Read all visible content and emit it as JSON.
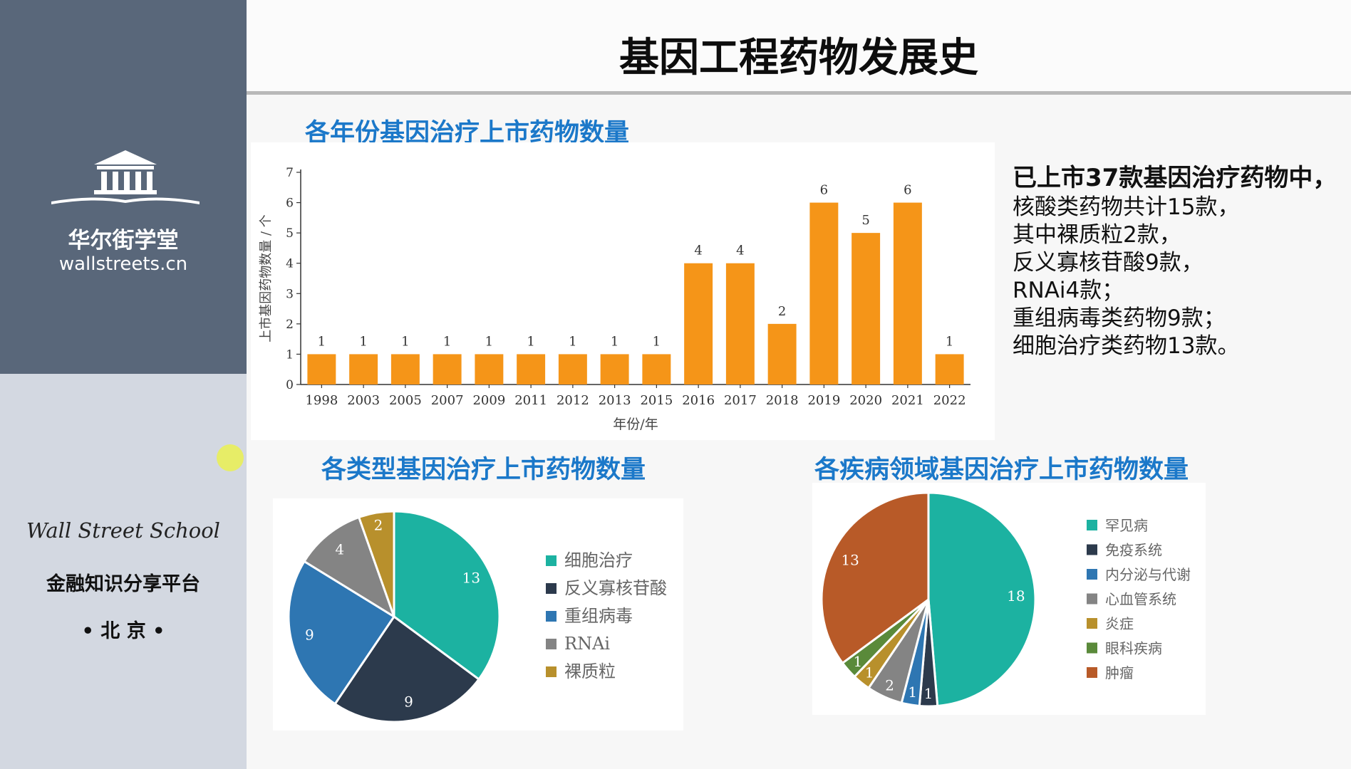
{
  "page": {
    "title": "基因工程药物发展史"
  },
  "sidebar": {
    "brand_cn": "华尔街学堂",
    "brand_url": "wallstreets.cn",
    "school_en": "Wall Street School",
    "slogan": "金融知识分享平台",
    "city": "• 北 京 •",
    "logo_icon": "institution-building-icon"
  },
  "sections": {
    "by_year": "各年份基因治疗上市药物数量",
    "by_type": "各类型基因治疗上市药物数量",
    "by_disease": "各疾病领域基因治疗上市药物数量"
  },
  "summary": {
    "head": "已上市37款基因治疗药物中，",
    "lines": [
      "核酸类药物共计15款，",
      "其中裸质粒2款，",
      "反义寡核苷酸9款，",
      "RNAi4款；",
      "重组病毒类药物9款；",
      "细胞治疗类药物13款。"
    ]
  },
  "chart_data": [
    {
      "type": "bar",
      "title": "各年份基因治疗上市药物数量",
      "categories": [
        "1998",
        "2003",
        "2005",
        "2007",
        "2009",
        "2011",
        "2012",
        "2013",
        "2015",
        "2016",
        "2017",
        "2018",
        "2019",
        "2020",
        "2021",
        "2022"
      ],
      "values": [
        1,
        1,
        1,
        1,
        1,
        1,
        1,
        1,
        1,
        4,
        4,
        2,
        6,
        5,
        6,
        1
      ],
      "xlabel": "年份/年",
      "ylabel": "上市基因药物数量 / 个",
      "ylim": [
        0,
        7
      ],
      "yticks": [
        0,
        1,
        2,
        3,
        4,
        5,
        6,
        7
      ],
      "color": "#f59518"
    },
    {
      "type": "pie",
      "title": "各类型基因治疗上市药物数量",
      "labels": [
        "细胞治疗",
        "反义寡核苷酸",
        "重组病毒",
        "RNAi",
        "裸质粒"
      ],
      "values": [
        13,
        9,
        9,
        4,
        2
      ],
      "colors": [
        "#1cb2a1",
        "#2c3a4c",
        "#2e76b2",
        "#848484",
        "#b8902c"
      ],
      "legend": "right"
    },
    {
      "type": "pie",
      "title": "各疾病领域基因治疗上市药物数量",
      "labels": [
        "罕见病",
        "免疫系统",
        "内分泌与代谢",
        "心血管系统",
        "炎症",
        "眼科疾病",
        "肿瘤"
      ],
      "values": [
        18,
        1,
        1,
        2,
        1,
        1,
        13
      ],
      "colors": [
        "#1cb2a1",
        "#2c3a4c",
        "#2e76b2",
        "#848484",
        "#b8902c",
        "#5a8a3a",
        "#b85a28"
      ],
      "legend": "right"
    }
  ]
}
